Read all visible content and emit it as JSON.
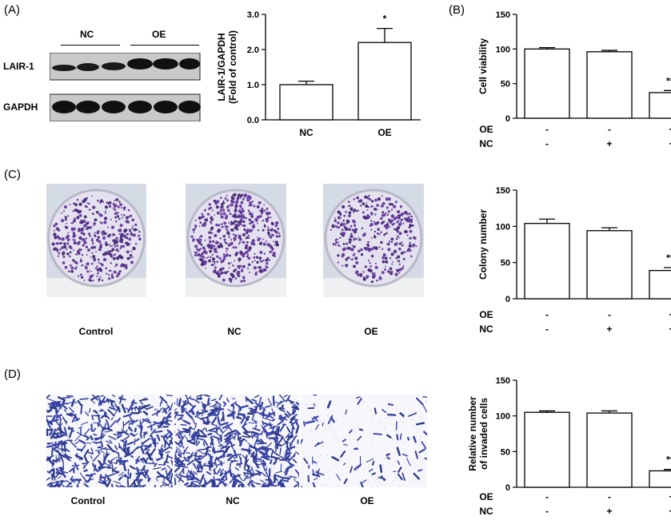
{
  "panel_labels": {
    "a": "(A)",
    "b": "(B)",
    "c": "(C)",
    "d": "(D)"
  },
  "western_blot": {
    "group_labels": [
      "NC",
      "OE"
    ],
    "row_labels": [
      "LAIR-1",
      "GAPDH"
    ]
  },
  "colony_images": {
    "labels": [
      "Control",
      "NC",
      "OE"
    ]
  },
  "invasion_images": {
    "labels": [
      "Control",
      "NC",
      "OE"
    ]
  },
  "condition_table": {
    "row_labels": [
      "OE",
      "NC"
    ],
    "oe": [
      "-",
      "-",
      "+"
    ],
    "nc": [
      "-",
      "+",
      "+"
    ]
  },
  "chart_data": [
    {
      "id": "a",
      "type": "bar",
      "categories": [
        "NC",
        "OE"
      ],
      "values": [
        1.0,
        2.2
      ],
      "errors": [
        0.1,
        0.4
      ],
      "ylabel": "LAIR-1/GAPDH",
      "ylabel2": "(Fold of control)",
      "ylim": [
        0,
        3
      ],
      "yticks": [
        "0.0",
        "1.0",
        "2.0",
        "3.0"
      ],
      "annotations": [
        "",
        "*"
      ]
    },
    {
      "id": "b",
      "type": "bar",
      "categories": [
        "",
        "",
        ""
      ],
      "values": [
        100,
        96,
        37
      ],
      "errors": [
        2,
        2,
        3
      ],
      "ylabel": "Cell viability",
      "ylim": [
        0,
        150
      ],
      "yticks": [
        "0",
        "50",
        "100",
        "150"
      ],
      "annotations": [
        "",
        "",
        "***"
      ]
    },
    {
      "id": "c",
      "type": "bar",
      "categories": [
        "",
        "",
        ""
      ],
      "values": [
        104,
        94,
        39
      ],
      "errors": [
        6,
        4,
        4
      ],
      "ylabel": "Colony number",
      "ylim": [
        0,
        150
      ],
      "yticks": [
        "0",
        "50",
        "100",
        "150"
      ],
      "annotations": [
        "",
        "",
        "***"
      ]
    },
    {
      "id": "d",
      "type": "bar",
      "categories": [
        "",
        "",
        ""
      ],
      "values": [
        105,
        104,
        23
      ],
      "errors": [
        2,
        3,
        2
      ],
      "ylabel": "Relative number",
      "ylabel2": "of invaded cells",
      "ylim": [
        0,
        150
      ],
      "yticks": [
        "0",
        "50",
        "100",
        "150"
      ],
      "annotations": [
        "",
        "",
        "***"
      ]
    }
  ]
}
